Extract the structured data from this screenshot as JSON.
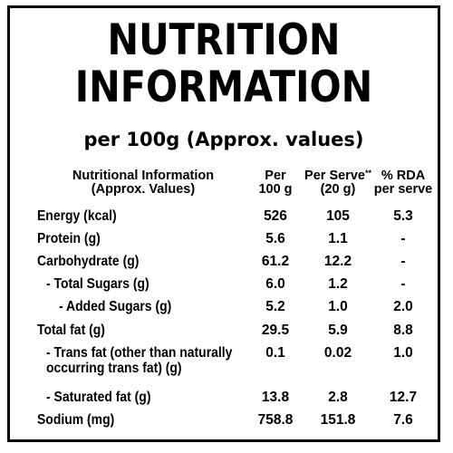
{
  "title_line1": "NUTRITION",
  "title_line2": "INFORMATION",
  "subtitle": "per 100g (Approx. values)",
  "headers": [
    "Nutritional Information\n(Approx. Values)",
    "Per\n100 g",
    "Per Serve",
    "% RDA\nper serve"
  ],
  "serve_marker": "**",
  "serve_size": "(20 g)",
  "rows": [
    {
      "label": "Energy (kcal)",
      "per100": "526",
      "perServe": "105",
      "rda": "5.3"
    },
    {
      "label": "Protein (g)",
      "per100": "5.6",
      "perServe": "1.1",
      "rda": "-"
    },
    {
      "label": "Carbohydrate (g)",
      "per100": "61.2",
      "perServe": "12.2",
      "rda": "-"
    },
    {
      "label": "- Total Sugars (g)",
      "per100": "6.0",
      "perServe": "1.2",
      "rda": "-"
    },
    {
      "label": "- Added Sugars (g)",
      "per100": "5.2",
      "perServe": "1.0",
      "rda": "2.0"
    },
    {
      "label": "Total fat (g)",
      "per100": "29.5",
      "perServe": "5.9",
      "rda": "8.8"
    },
    {
      "label": "- Trans fat (other than naturally\noccurring trans fat) (g)",
      "per100": "0.1",
      "perServe": "0.02",
      "rda": "1.0"
    },
    {
      "label": "- Saturated fat (g)",
      "per100": "13.8",
      "perServe": "2.8",
      "rda": "12.7"
    },
    {
      "label": "Sodium (mg)",
      "per100": "758.8",
      "perServe": "151.8",
      "rda": "7.6"
    }
  ]
}
